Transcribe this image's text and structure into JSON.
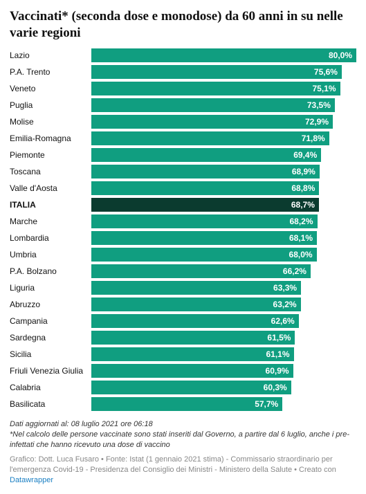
{
  "title": "Vaccinati* (seconda dose e monodose) da 60 anni in su nelle varie regioni",
  "chart": {
    "type": "bar",
    "max_value": 80.0,
    "bar_color": "#109e80",
    "highlight_color": "#0b3b2f",
    "value_color": "#ffffff",
    "background": "#ffffff",
    "label_fontsize": 12,
    "value_fontsize": 12,
    "rows": [
      {
        "label": "Lazio",
        "value": 80.0,
        "display": "80,0%",
        "highlight": false
      },
      {
        "label": "P.A. Trento",
        "value": 75.6,
        "display": "75,6%",
        "highlight": false
      },
      {
        "label": "Veneto",
        "value": 75.1,
        "display": "75,1%",
        "highlight": false
      },
      {
        "label": "Puglia",
        "value": 73.5,
        "display": "73,5%",
        "highlight": false
      },
      {
        "label": "Molise",
        "value": 72.9,
        "display": "72,9%",
        "highlight": false
      },
      {
        "label": "Emilia-Romagna",
        "value": 71.8,
        "display": "71,8%",
        "highlight": false
      },
      {
        "label": "Piemonte",
        "value": 69.4,
        "display": "69,4%",
        "highlight": false
      },
      {
        "label": "Toscana",
        "value": 68.9,
        "display": "68,9%",
        "highlight": false
      },
      {
        "label": "Valle d'Aosta",
        "value": 68.8,
        "display": "68,8%",
        "highlight": false
      },
      {
        "label": "ITALIA",
        "value": 68.7,
        "display": "68,7%",
        "highlight": true
      },
      {
        "label": "Marche",
        "value": 68.2,
        "display": "68,2%",
        "highlight": false
      },
      {
        "label": "Lombardia",
        "value": 68.1,
        "display": "68,1%",
        "highlight": false
      },
      {
        "label": "Umbria",
        "value": 68.0,
        "display": "68,0%",
        "highlight": false
      },
      {
        "label": "P.A. Bolzano",
        "value": 66.2,
        "display": "66,2%",
        "highlight": false
      },
      {
        "label": "Liguria",
        "value": 63.3,
        "display": "63,3%",
        "highlight": false
      },
      {
        "label": "Abruzzo",
        "value": 63.2,
        "display": "63,2%",
        "highlight": false
      },
      {
        "label": "Campania",
        "value": 62.6,
        "display": "62,6%",
        "highlight": false
      },
      {
        "label": "Sardegna",
        "value": 61.5,
        "display": "61,5%",
        "highlight": false
      },
      {
        "label": "Sicilia",
        "value": 61.1,
        "display": "61,1%",
        "highlight": false
      },
      {
        "label": "Friuli Venezia Giulia",
        "value": 60.9,
        "display": "60,9%",
        "highlight": false
      },
      {
        "label": "Calabria",
        "value": 60.3,
        "display": "60,3%",
        "highlight": false
      },
      {
        "label": "Basilicata",
        "value": 57.7,
        "display": "57,7%",
        "highlight": false
      }
    ]
  },
  "notes": {
    "updated": "Dati aggiornati al: 08 luglio 2021 ore 06:18",
    "method": "*Nel calcolo delle persone vaccinate sono stati inseriti dal Governo, a partire dal 6 luglio, anche i pre-infettati che hanno ricevuto una dose di vaccino",
    "source_prefix": "Grafico: Dott. Luca Fusaro • Fonte: Istat (1 gennaio 2021 stima) - Commissario straordinario per l'emergenza Covid-19 - Presidenza del Consiglio dei Ministri - Ministero della Salute • Creato con ",
    "dw": "Datawrapper"
  }
}
